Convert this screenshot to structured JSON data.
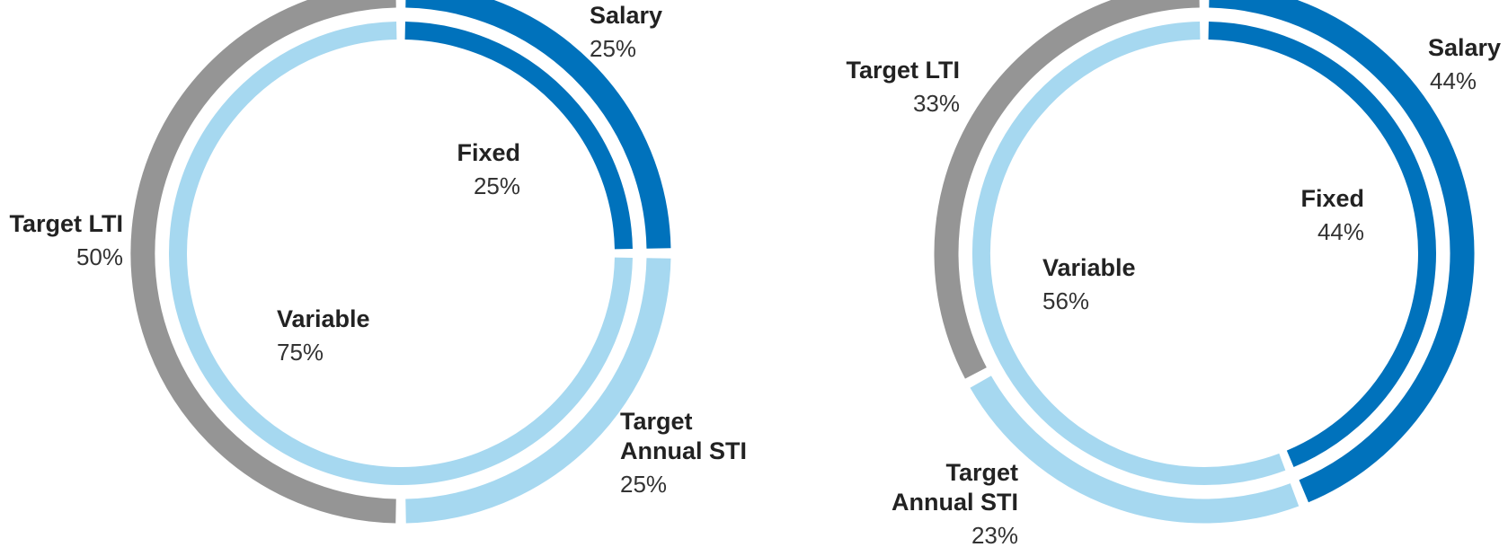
{
  "colors": {
    "salary": "#0072BC",
    "sti": "#A6D8F0",
    "lti": "#959595",
    "background": "#FFFFFF"
  },
  "chart_data": [
    {
      "type": "pie",
      "title": "",
      "outer_ring": {
        "slices": [
          {
            "label": "Salary",
            "value": 25,
            "value_label": "25%",
            "color_key": "salary"
          },
          {
            "label": "Target Annual STI",
            "label_lines": [
              "Target",
              "Annual STI"
            ],
            "value": 25,
            "value_label": "25%",
            "color_key": "sti"
          },
          {
            "label": "Target LTI",
            "value": 50,
            "value_label": "50%",
            "color_key": "lti"
          }
        ]
      },
      "inner_ring": {
        "slices": [
          {
            "label": "Fixed",
            "value": 25,
            "value_label": "25%",
            "color_key": "salary"
          },
          {
            "label": "Variable",
            "value": 75,
            "value_label": "75%",
            "color_key": "sti"
          }
        ]
      }
    },
    {
      "type": "pie",
      "title": "",
      "outer_ring": {
        "slices": [
          {
            "label": "Salary",
            "value": 44,
            "value_label": "44%",
            "color_key": "salary"
          },
          {
            "label": "Target Annual STI",
            "label_lines": [
              "Target",
              "Annual STI"
            ],
            "value": 23,
            "value_label": "23%",
            "color_key": "sti"
          },
          {
            "label": "Target LTI",
            "value": 33,
            "value_label": "33%",
            "color_key": "lti"
          }
        ]
      },
      "inner_ring": {
        "slices": [
          {
            "label": "Fixed",
            "value": 44,
            "value_label": "44%",
            "color_key": "salary"
          },
          {
            "label": "Variable",
            "value": 56,
            "value_label": "56%",
            "color_key": "sti"
          }
        ]
      }
    }
  ]
}
